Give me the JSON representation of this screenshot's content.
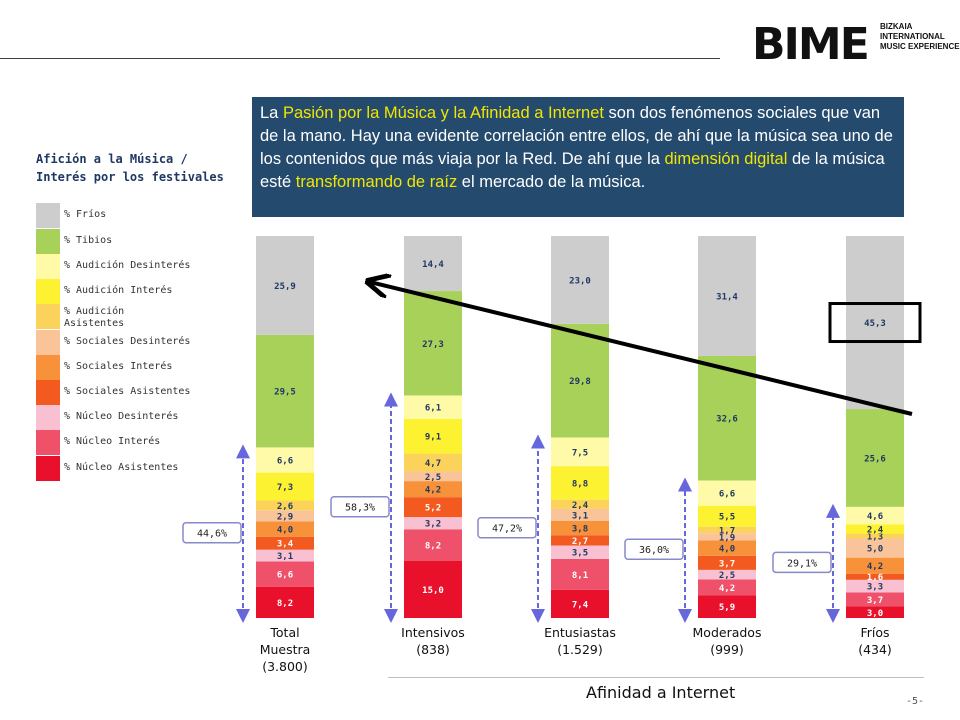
{
  "logo": {
    "text": "BIME",
    "subtitle": [
      "BIZKAIA",
      "INTERNATIONAL",
      "MUSIC EXPERIENCE"
    ]
  },
  "callout": {
    "segments": [
      {
        "text": "La ",
        "highlight": false
      },
      {
        "text": "Pasión por la Música y la Afinidad a Internet",
        "highlight": true
      },
      {
        "text": " son dos fenómenos sociales que van de la mano. Hay una evidente correlación entre ellos, de ahí que la música sea uno de los contenidos que más viaja por la Red. De ahí que la ",
        "highlight": false
      },
      {
        "text": "dimensión digital",
        "highlight": true
      },
      {
        "text": " de la música esté ",
        "highlight": false
      },
      {
        "text": "transformando de raíz",
        "highlight": true
      },
      {
        "text": " el mercado de la música.",
        "highlight": false
      }
    ],
    "background": "#244a6e",
    "highlight_color": "#f2e600"
  },
  "legend": {
    "title_line1": "Afición a la Música /",
    "title_line2": "Interés por los festivales"
  },
  "page_number": "-5-",
  "chart_data": {
    "type": "bar",
    "stacked": true,
    "x_title": "Afinidad a Internet",
    "categories": [
      {
        "line1": "Total",
        "line2": "Muestra",
        "line3": "(3.800)"
      },
      {
        "line1": "Intensivos",
        "line2": "(838)",
        "line3": ""
      },
      {
        "line1": "Entusiastas",
        "line2": "(1.529)",
        "line3": ""
      },
      {
        "line1": "Moderados",
        "line2": "(999)",
        "line3": ""
      },
      {
        "line1": "Fríos",
        "line2": "(434)",
        "line3": ""
      }
    ],
    "series": [
      {
        "name": "% Núcleo Asistentes",
        "color": "#e8102a",
        "values": [
          8.2,
          15.0,
          7.4,
          5.9,
          3.0
        ],
        "labels": [
          "8,2",
          "15,0",
          "7,4",
          "5,9",
          "3,0"
        ]
      },
      {
        "name": "% Núcleo Interés",
        "color": "#f0516a",
        "values": [
          6.6,
          8.2,
          8.1,
          4.2,
          3.7
        ],
        "labels": [
          "6,6",
          "8,2",
          "8,1",
          "4,2",
          "3,7"
        ]
      },
      {
        "name": "% Núcleo Desinterés",
        "color": "#f8c0d0",
        "values": [
          3.1,
          3.2,
          3.5,
          2.5,
          3.3
        ],
        "labels": [
          "3,1",
          "3,2",
          "3,5",
          "2,5",
          "3,3"
        ]
      },
      {
        "name": "% Sociales Asistentes",
        "color": "#f25a1f",
        "values": [
          3.4,
          5.2,
          2.7,
          3.7,
          1.6
        ],
        "labels": [
          "3,4",
          "5,2",
          "2,7",
          "3,7",
          "1,6"
        ]
      },
      {
        "name": "% Sociales Interés",
        "color": "#f7923a",
        "values": [
          4.0,
          4.2,
          3.8,
          4.0,
          4.2
        ],
        "labels": [
          "4,0",
          "4,2",
          "3,8",
          "4,0",
          "4,2"
        ]
      },
      {
        "name": "% Sociales Desinterés",
        "color": "#f9c49a",
        "values": [
          2.9,
          2.5,
          3.1,
          1.9,
          5.0
        ],
        "labels": [
          "2,9",
          "2,5",
          "3,1",
          "1,9",
          "5,0"
        ]
      },
      {
        "name": "% Audición Asistentes",
        "color": "#fbd35a",
        "values": [
          2.6,
          4.7,
          2.4,
          1.7,
          1.3
        ],
        "labels": [
          "2,6",
          "4,7",
          "2,4",
          "1,7",
          "1,3"
        ]
      },
      {
        "name": "% Audición Interés",
        "color": "#fdf232",
        "values": [
          7.3,
          9.1,
          8.8,
          5.5,
          2.4
        ],
        "labels": [
          "7,3",
          "9,1",
          "8,8",
          "5,5",
          "2,4"
        ]
      },
      {
        "name": "% Audición Desinterés",
        "color": "#fefaa8",
        "values": [
          6.6,
          6.1,
          7.5,
          6.6,
          4.6
        ],
        "labels": [
          "6,6",
          "6,1",
          "7,5",
          "6,6",
          "4,6"
        ]
      },
      {
        "name": "% Tibios",
        "color": "#a8d15a",
        "values": [
          29.5,
          27.3,
          29.8,
          32.6,
          25.6
        ],
        "labels": [
          "29,5",
          "27,3",
          "29,8",
          "32,6",
          "25,6"
        ]
      },
      {
        "name": "% Fríos",
        "color": "#cdcdcd",
        "values": [
          25.9,
          14.4,
          23.0,
          31.4,
          45.3
        ],
        "labels": [
          "25,9",
          "14,4",
          "23,0",
          "31,4",
          "45,3"
        ]
      }
    ],
    "legend_order": [
      "% Fríos",
      "% Tibios",
      "% Audición Desinterés",
      "% Audición Interés",
      "% Audición Asistentes",
      "% Sociales Desinterés",
      "% Sociales Interés",
      "% Sociales Asistentes",
      "% Núcleo Desinterés",
      "% Núcleo Interés",
      "% Núcleo Asistentes"
    ],
    "bracket_labels": [
      "44,6%",
      "58,3%",
      "47,2%",
      "36,0%",
      "29,1%"
    ],
    "bracket_values": [
      44.6,
      58.3,
      47.2,
      36.0,
      29.1
    ],
    "highlighted_segment": {
      "category": "Fríos",
      "series": "% Fríos"
    },
    "ylim": [
      0,
      100
    ],
    "grid": false,
    "legend_position": "left"
  }
}
